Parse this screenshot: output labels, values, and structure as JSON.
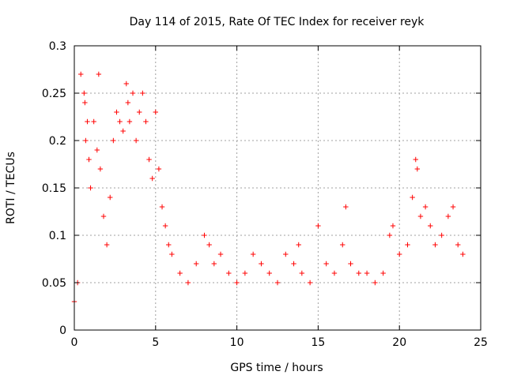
{
  "chart_data": {
    "type": "scatter",
    "title": "Day 114 of 2015, Rate Of TEC Index for receiver reyk",
    "xlabel": "GPS time / hours",
    "ylabel": "ROTI / TECUs",
    "xlim": [
      0,
      25
    ],
    "ylim": [
      0,
      0.3
    ],
    "x_ticks": [
      0,
      5,
      10,
      15,
      20,
      25
    ],
    "y_ticks": [
      0,
      0.05,
      0.1,
      0.15,
      0.2,
      0.25,
      0.3
    ],
    "x_tick_labels": [
      "0",
      "5",
      "10",
      "15",
      "20",
      "25"
    ],
    "y_tick_labels": [
      "0",
      "0.05",
      "0.1",
      "0.15",
      "0.2",
      "0.25",
      "0.3"
    ],
    "grid": true,
    "marker": "+",
    "color": "#ff0000",
    "series": [
      {
        "name": "ROTI",
        "points": [
          [
            0.0,
            0.03
          ],
          [
            0.2,
            0.05
          ],
          [
            0.4,
            0.27
          ],
          [
            0.6,
            0.25
          ],
          [
            0.65,
            0.24
          ],
          [
            0.7,
            0.2
          ],
          [
            0.8,
            0.22
          ],
          [
            0.9,
            0.18
          ],
          [
            1.0,
            0.15
          ],
          [
            1.2,
            0.22
          ],
          [
            1.4,
            0.19
          ],
          [
            1.5,
            0.27
          ],
          [
            1.6,
            0.17
          ],
          [
            1.8,
            0.12
          ],
          [
            2.0,
            0.09
          ],
          [
            2.2,
            0.14
          ],
          [
            2.4,
            0.2
          ],
          [
            2.6,
            0.23
          ],
          [
            2.8,
            0.22
          ],
          [
            3.0,
            0.21
          ],
          [
            3.2,
            0.26
          ],
          [
            3.3,
            0.24
          ],
          [
            3.4,
            0.22
          ],
          [
            3.6,
            0.25
          ],
          [
            3.8,
            0.2
          ],
          [
            4.0,
            0.23
          ],
          [
            4.2,
            0.25
          ],
          [
            4.4,
            0.22
          ],
          [
            4.6,
            0.18
          ],
          [
            4.8,
            0.16
          ],
          [
            5.0,
            0.23
          ],
          [
            5.2,
            0.17
          ],
          [
            5.4,
            0.13
          ],
          [
            5.6,
            0.11
          ],
          [
            5.8,
            0.09
          ],
          [
            6.0,
            0.08
          ],
          [
            6.5,
            0.06
          ],
          [
            7.0,
            0.05
          ],
          [
            7.5,
            0.07
          ],
          [
            8.0,
            0.1
          ],
          [
            8.3,
            0.09
          ],
          [
            8.6,
            0.07
          ],
          [
            9.0,
            0.08
          ],
          [
            9.5,
            0.06
          ],
          [
            10.0,
            0.05
          ],
          [
            10.5,
            0.06
          ],
          [
            11.0,
            0.08
          ],
          [
            11.5,
            0.07
          ],
          [
            12.0,
            0.06
          ],
          [
            12.5,
            0.05
          ],
          [
            13.0,
            0.08
          ],
          [
            13.5,
            0.07
          ],
          [
            13.8,
            0.09
          ],
          [
            14.0,
            0.06
          ],
          [
            14.5,
            0.05
          ],
          [
            15.0,
            0.11
          ],
          [
            15.5,
            0.07
          ],
          [
            16.0,
            0.06
          ],
          [
            16.5,
            0.09
          ],
          [
            16.7,
            0.13
          ],
          [
            17.0,
            0.07
          ],
          [
            17.5,
            0.06
          ],
          [
            18.0,
            0.06
          ],
          [
            18.5,
            0.05
          ],
          [
            19.0,
            0.06
          ],
          [
            19.4,
            0.1
          ],
          [
            19.6,
            0.11
          ],
          [
            20.0,
            0.08
          ],
          [
            20.5,
            0.09
          ],
          [
            20.8,
            0.14
          ],
          [
            21.0,
            0.18
          ],
          [
            21.1,
            0.17
          ],
          [
            21.3,
            0.12
          ],
          [
            21.6,
            0.13
          ],
          [
            21.9,
            0.11
          ],
          [
            22.2,
            0.09
          ],
          [
            22.6,
            0.1
          ],
          [
            23.0,
            0.12
          ],
          [
            23.3,
            0.13
          ],
          [
            23.6,
            0.09
          ],
          [
            23.9,
            0.08
          ]
        ]
      }
    ]
  }
}
